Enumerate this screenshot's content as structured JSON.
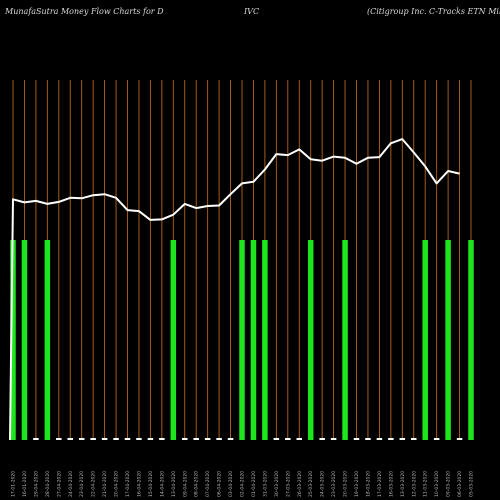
{
  "header": {
    "site": "MunafaSutra  Money Flow  Charts for D",
    "symbol": "IVC",
    "company": "(Citigroup Inc. C-Tracks ETN  Mil) Mu"
  },
  "colors": {
    "background": "#000000",
    "gridline": "#b8651a",
    "up_bar": "#1ee61e",
    "neutral_bar": "#ffffff",
    "price_line": "#ffffff"
  },
  "chart_data": {
    "type": "bar",
    "title": "MunafaSutra  Money Flow  Charts for DIVC (Citigroup Inc. C-Tracks ETN  Mil) Mu",
    "categories": [
      "17-01-2020",
      "16-01-2020",
      "29-04-2020",
      "28-04-2020",
      "27-04-2020",
      "24-04-2020",
      "23-04-2020",
      "22-04-2020",
      "21-04-2020",
      "20-04-2020",
      "17-04-2020",
      "16-04-2020",
      "15-04-2020",
      "14-04-2020",
      "13-04-2020",
      "09-04-2020",
      "08-04-2020",
      "07-04-2020",
      "06-04-2020",
      "03-04-2020",
      "02-04-2020",
      "01-04-2020",
      "31-03-2020",
      "30-03-2020",
      "27-03-2020",
      "26-03-2020",
      "25-03-2020",
      "24-03-2020",
      "23-03-2020",
      "20-03-2020",
      "19-03-2020",
      "18-03-2020",
      "17-03-2020",
      "16-03-2020",
      "13-03-2020",
      "12-03-2020",
      "11-03-2020",
      "10-03-2020",
      "09-03-2020",
      "06-03-2020",
      "05-03-2020"
    ],
    "series": [
      {
        "role": "money-flow-volume",
        "values": [
          1,
          1,
          0,
          1,
          0,
          0,
          0,
          0,
          0,
          0,
          0,
          0,
          0,
          0,
          1,
          0,
          0,
          0,
          0,
          0,
          1,
          1,
          1,
          0,
          0,
          0,
          1,
          0,
          0,
          1,
          0,
          0,
          0,
          0,
          0,
          0,
          1,
          0,
          1,
          0,
          1
        ],
        "colors": [
          "green",
          "green",
          "white",
          "green",
          "white",
          "white",
          "white",
          "white",
          "white",
          "white",
          "white",
          "white",
          "white",
          "white",
          "green",
          "white",
          "white",
          "white",
          "white",
          "white",
          "green",
          "green",
          "green",
          "white",
          "white",
          "white",
          "green",
          "white",
          "white",
          "green",
          "white",
          "white",
          "white",
          "white",
          "white",
          "white",
          "green",
          "white",
          "green",
          "white",
          "green"
        ]
      },
      {
        "role": "price",
        "values": [
          6.8,
          6.2,
          6.5,
          5.9,
          6.3,
          7.1,
          7.0,
          7.6,
          7.8,
          7.1,
          4.7,
          4.5,
          2.8,
          2.9,
          3.8,
          5.9,
          5.1,
          5.5,
          5.6,
          7.8,
          9.9,
          10.2,
          12.6,
          15.6,
          15.4,
          16.5,
          14.6,
          14.3,
          15.1,
          14.9,
          13.7,
          14.9,
          15.0,
          17.7,
          18.5,
          15.9,
          13.2,
          9.9,
          12.3,
          11.8,
          null
        ],
        "start_value": -40.0
      }
    ],
    "ylim_volume": [
      0,
      1
    ],
    "ylim_price": [
      -40,
      30
    ],
    "grid": true,
    "legend": "none"
  }
}
